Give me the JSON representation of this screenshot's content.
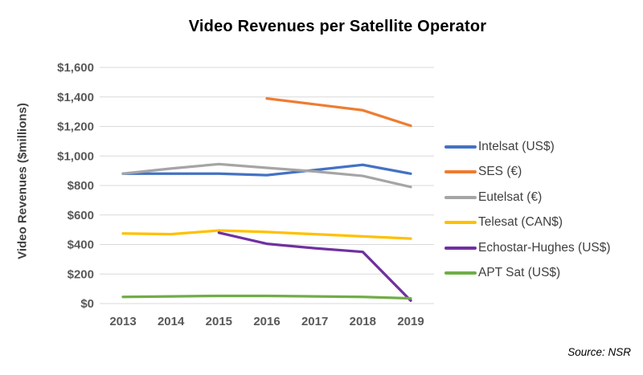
{
  "chart_data": {
    "type": "line",
    "title": "Video Revenues per Satellite Operator",
    "ylabel": "Video Revenues ($millions)",
    "xlabel": "",
    "categories": [
      "2013",
      "2014",
      "2015",
      "2016",
      "2017",
      "2018",
      "2019"
    ],
    "series": [
      {
        "name": "Intelsat (US$)",
        "color": "#4472C4",
        "values": [
          880,
          880,
          880,
          870,
          905,
          940,
          880
        ]
      },
      {
        "name": "SES (€)",
        "color": "#ED7D31",
        "values": [
          null,
          null,
          null,
          1390,
          1350,
          1310,
          1205
        ]
      },
      {
        "name": "Eutelsat (€)",
        "color": "#A5A5A5",
        "values": [
          880,
          915,
          945,
          920,
          895,
          865,
          790
        ]
      },
      {
        "name": "Telesat (CAN$)",
        "color": "#FFC000",
        "values": [
          475,
          470,
          495,
          485,
          470,
          455,
          440
        ]
      },
      {
        "name": "Echostar-Hughes (US$)",
        "color": "#7030A0",
        "values": [
          null,
          null,
          480,
          405,
          375,
          350,
          20
        ]
      },
      {
        "name": "APT Sat (US$)",
        "color": "#70AD47",
        "values": [
          45,
          48,
          52,
          52,
          48,
          45,
          35
        ]
      }
    ],
    "ylim": [
      0,
      1600
    ],
    "ytick_step": 200,
    "y_tick_labels": [
      "$0",
      "$200",
      "$400",
      "$600",
      "$800",
      "$1,000",
      "$1,200",
      "$1,400",
      "$1,600"
    ],
    "grid": true,
    "legend_position": "right",
    "source": "Source: NSR"
  }
}
